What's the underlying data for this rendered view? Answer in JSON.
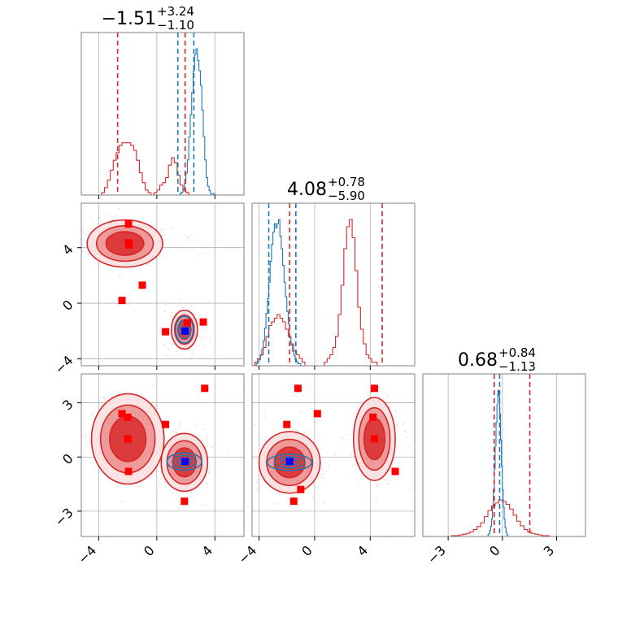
{
  "chart_data": {
    "type": "scatter",
    "subtype": "corner-plot",
    "parameters": 3,
    "colors": {
      "red": "#d62728",
      "blue": "#1f77b4",
      "truth_red": "#ff0000",
      "truth_blue": "#0000ff",
      "grid": "#b0b0b0",
      "spine": "#808080"
    },
    "titles": [
      {
        "median": "−1.51",
        "upper": "+3.24",
        "lower": "−1.10"
      },
      {
        "median": "4.08",
        "upper": "+0.78",
        "lower": "−5.90"
      },
      {
        "median": "0.68",
        "upper": "+0.84",
        "lower": "−1.13"
      }
    ],
    "axes": {
      "p0": {
        "range": [
          -5.2,
          6.0
        ],
        "ticks": [
          -4,
          0,
          4
        ],
        "tick_labels": [
          "−4",
          "0",
          "4"
        ]
      },
      "p1": {
        "range": [
          -4.5,
          7.2
        ],
        "ticks": [
          -4,
          0,
          4
        ],
        "tick_labels": [
          "−4",
          "0",
          "4"
        ]
      },
      "p2": {
        "range": [
          -4.4,
          4.6
        ],
        "ticks": [
          -3,
          0,
          3
        ],
        "tick_labels": [
          "−3",
          "0",
          "3"
        ]
      }
    },
    "grid": true,
    "diagonal": [
      {
        "param": "p0",
        "quantile_lines": [
          {
            "color": "red",
            "x": -2.7
          },
          {
            "color": "red",
            "x": 1.95
          },
          {
            "color": "blue",
            "x": 1.45
          },
          {
            "color": "blue",
            "x": 2.55
          }
        ],
        "red_hist": {
          "start": -5.0,
          "step": 0.2,
          "counts": [
            0,
            0,
            0,
            0,
            0,
            0,
            1,
            3,
            6,
            10,
            14,
            17,
            20,
            21,
            21,
            21,
            20,
            18,
            14,
            9,
            5,
            2,
            1,
            0,
            1,
            2,
            4,
            5,
            7,
            12,
            15,
            13,
            8,
            4,
            2,
            1,
            0,
            0,
            0,
            0,
            0,
            0,
            0,
            0,
            0,
            0,
            0,
            0,
            0,
            0,
            0,
            0,
            0,
            0,
            0
          ]
        },
        "blue_hist": {
          "start": -5.0,
          "step": 0.1,
          "counts": [
            0,
            0,
            0,
            0,
            0,
            0,
            0,
            0,
            0,
            0,
            0,
            0,
            0,
            0,
            0,
            0,
            0,
            0,
            0,
            0,
            0,
            0,
            0,
            0,
            0,
            0,
            0,
            0,
            0,
            0,
            0,
            0,
            0,
            0,
            0,
            0,
            0,
            0,
            0,
            0,
            0,
            0,
            0,
            0,
            0,
            0,
            0,
            0,
            0,
            0,
            0,
            0,
            0,
            0,
            0,
            0,
            0,
            0,
            0,
            0,
            0,
            0,
            0,
            0,
            0,
            0,
            1,
            2,
            4,
            8,
            15,
            24,
            40,
            55,
            70,
            85,
            96,
            100,
            92,
            85,
            75,
            58,
            40,
            24,
            12,
            6,
            3,
            1,
            0,
            1,
            0,
            0,
            0,
            0,
            0,
            0,
            0,
            0,
            0,
            0,
            0,
            0,
            0,
            0,
            0,
            0,
            0,
            0,
            0,
            0,
            0
          ]
        }
      },
      {
        "param": "p1",
        "quantile_lines": [
          {
            "color": "red",
            "x": -1.8
          },
          {
            "color": "red",
            "x": 4.86
          },
          {
            "color": "blue",
            "x": -3.3
          },
          {
            "color": "blue",
            "x": -1.35
          }
        ],
        "red_hist": {
          "start": -4.5,
          "step": 0.2,
          "counts": [
            0,
            1,
            2,
            3,
            5,
            8,
            11,
            12,
            13,
            14,
            13,
            12,
            10,
            8,
            6,
            4,
            3,
            2,
            1,
            0,
            0,
            0,
            0,
            0,
            0,
            0,
            1,
            2,
            3,
            5,
            8,
            14,
            22,
            32,
            38,
            40,
            35,
            26,
            16,
            10,
            6,
            3,
            2,
            1,
            1,
            0,
            0,
            0,
            0,
            0,
            0,
            0,
            0,
            0,
            0,
            0,
            0,
            0,
            0
          ]
        },
        "blue_hist": {
          "start": -4.5,
          "step": 0.1,
          "counts": [
            0,
            0,
            0,
            1,
            2,
            3,
            5,
            8,
            12,
            18,
            25,
            32,
            40,
            50,
            58,
            64,
            68,
            66,
            68,
            70,
            62,
            56,
            48,
            40,
            33,
            26,
            20,
            14,
            10,
            7,
            5,
            3,
            2,
            1,
            1,
            0,
            0,
            0,
            0,
            0,
            0,
            0,
            0,
            0,
            0,
            0,
            0,
            0,
            0,
            0,
            0,
            0,
            0,
            0,
            0,
            0,
            0,
            0,
            0,
            0,
            0,
            0,
            0,
            0,
            0,
            0,
            0,
            0,
            0,
            0,
            0,
            0,
            0,
            0,
            0,
            0,
            0,
            0,
            0,
            0,
            0,
            0,
            0,
            0,
            0,
            0,
            0,
            0,
            0,
            0,
            0,
            0,
            0,
            0,
            0,
            0,
            0,
            0,
            0,
            0,
            0,
            0,
            0,
            0,
            0,
            0,
            0,
            0,
            0,
            0,
            0,
            0,
            0,
            0,
            0,
            0,
            0
          ]
        }
      },
      {
        "param": "p2",
        "quantile_lines": [
          {
            "color": "red",
            "x": -0.45
          },
          {
            "color": "red",
            "x": 1.52
          },
          {
            "color": "blue",
            "x": -0.15
          }
        ],
        "red_hist": {
          "start": -4.4,
          "step": 0.2,
          "counts": [
            0,
            0,
            0,
            0,
            0,
            0,
            0,
            0,
            1,
            1,
            2,
            3,
            4,
            6,
            9,
            13,
            18,
            26,
            34,
            40,
            44,
            48,
            46,
            42,
            36,
            28,
            20,
            14,
            9,
            6,
            4,
            3,
            2,
            1,
            1,
            0,
            0,
            0,
            0,
            0,
            0,
            0,
            0,
            0,
            0,
            0
          ]
        },
        "blue_hist": {
          "start": -4.4,
          "step": 0.05,
          "counts": [
            0,
            0,
            0,
            0,
            0,
            0,
            0,
            0,
            0,
            0,
            0,
            0,
            0,
            0,
            0,
            0,
            0,
            0,
            0,
            0,
            0,
            0,
            0,
            0,
            0,
            0,
            0,
            0,
            0,
            0,
            0,
            0,
            0,
            0,
            0,
            0,
            0,
            0,
            0,
            0,
            0,
            0,
            0,
            0,
            0,
            0,
            0,
            0,
            0,
            0,
            0,
            0,
            0,
            0,
            0,
            0,
            0,
            0,
            0,
            0,
            0,
            0,
            0,
            0,
            0,
            0,
            0,
            0,
            0,
            0,
            0,
            0,
            1,
            2,
            4,
            7,
            12,
            20,
            32,
            46,
            62,
            78,
            90,
            100,
            96,
            84,
            66,
            48,
            32,
            20,
            12,
            6,
            3,
            1,
            0,
            0,
            0,
            0,
            0,
            0,
            0,
            0,
            0,
            0,
            0,
            0,
            0,
            0,
            0,
            0,
            0,
            0,
            0,
            0,
            0,
            0,
            0,
            0,
            0,
            0,
            0,
            0,
            0,
            0,
            0,
            0,
            0,
            0,
            0,
            0,
            0,
            0,
            0,
            0,
            0,
            0,
            0,
            0,
            0,
            0,
            0,
            0,
            0,
            0,
            0,
            0,
            0,
            0,
            0,
            0,
            0,
            0,
            0,
            0,
            0,
            0,
            0,
            0,
            0,
            0,
            0,
            0,
            0,
            0,
            0,
            0,
            0,
            0,
            0,
            0,
            0,
            0,
            0,
            0,
            0,
            0,
            0,
            0,
            0,
            0,
            0
          ]
        }
      }
    ],
    "pairs": [
      {
        "x_param": "p0",
        "y_param": "p1",
        "red_modes": [
          {
            "cx": -2.2,
            "cy": 4.3,
            "sx": 1.3,
            "sy": 0.85
          },
          {
            "cx": 1.9,
            "cy": -1.9,
            "sx": 0.45,
            "sy": 0.7
          }
        ],
        "blue_modes": [
          {
            "cx": 1.9,
            "cy": -1.9,
            "sx": 0.38,
            "sy": 0.6
          }
        ],
        "red_markers": [
          [
            -1.95,
            5.7
          ],
          [
            -1.95,
            4.35
          ],
          [
            -1.0,
            1.3
          ],
          [
            -2.4,
            0.2
          ],
          [
            0.6,
            -2.05
          ],
          [
            2.1,
            -1.4
          ],
          [
            3.2,
            -1.35
          ],
          [
            -1.9,
            4.2
          ]
        ],
        "blue_markers": [
          [
            1.95,
            -2.0
          ]
        ]
      },
      {
        "x_param": "p0",
        "y_param": "p2",
        "red_modes": [
          {
            "cx": -2.0,
            "cy": 1.0,
            "sx": 1.25,
            "sy": 1.25
          },
          {
            "cx": 1.9,
            "cy": -0.3,
            "sx": 0.8,
            "sy": 0.8
          }
        ],
        "blue_modes": [
          {
            "cx": 1.9,
            "cy": -0.25,
            "sx": 0.75,
            "sy": 0.3
          }
        ],
        "red_markers": [
          [
            -2.4,
            2.4
          ],
          [
            -2.0,
            2.2
          ],
          [
            -2.0,
            1.0
          ],
          [
            0.6,
            1.8
          ],
          [
            3.3,
            3.8
          ],
          [
            -1.95,
            -0.8
          ],
          [
            1.9,
            -2.45
          ]
        ],
        "blue_markers": [
          [
            1.95,
            -0.25
          ]
        ]
      },
      {
        "x_param": "p1",
        "y_param": "p2",
        "red_modes": [
          {
            "cx": -1.8,
            "cy": -0.3,
            "sx": 1.1,
            "sy": 0.85
          },
          {
            "cx": 4.3,
            "cy": 1.0,
            "sx": 0.75,
            "sy": 1.15
          }
        ],
        "blue_modes": [
          {
            "cx": -1.8,
            "cy": -0.3,
            "sx": 1.0,
            "sy": 0.28
          }
        ],
        "red_markers": [
          [
            -1.2,
            3.8
          ],
          [
            -2.0,
            1.8
          ],
          [
            0.2,
            2.4
          ],
          [
            -1.0,
            -1.8
          ],
          [
            -1.5,
            -2.45
          ],
          [
            4.2,
            2.2
          ],
          [
            4.3,
            1.0
          ],
          [
            5.8,
            -0.8
          ],
          [
            4.3,
            3.8
          ]
        ],
        "blue_markers": [
          [
            -1.8,
            -0.25
          ]
        ]
      }
    ]
  }
}
